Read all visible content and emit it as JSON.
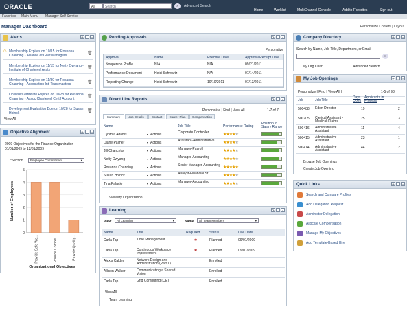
{
  "header": {
    "logo": "ORACLE",
    "search_scope": "All",
    "search_placeholder": "Search",
    "advanced": "Advanced Search",
    "nav": [
      "Home",
      "Worklist",
      "MultiChannel Console",
      "Add to Favorites",
      "Sign out"
    ]
  },
  "menu": {
    "favorites": "Favorites",
    "main": "Main Menu",
    "crumb": "Manager Self Service"
  },
  "page": {
    "title": "Manager Dashboard",
    "personalize": "Personalize Content | Layout"
  },
  "alerts": {
    "title": "Alerts",
    "items": [
      "Membership Expires on 10/15 for Rosanna Channing - Alliance of Govt Managers",
      "Membership Expires on 11/15 for Nelty Owyang - Institute of Chartered Accts",
      "Membership Expires on 11/30 for Rosanna Channing - Association Intl Toastmasters",
      "License/Certificate Expires on 10/28 for Rosanna Channing - Assoc Chartered Certif Account",
      "Development Evaluation Due on 10/28 for Susan Hoinck"
    ],
    "view_all": "View All"
  },
  "objective": {
    "title": "Objective Alignment",
    "subtitle": "2009 Objectives for the Finance Organization",
    "dates": "01/01/2009 to 12/31/2009",
    "section_label": "*Section",
    "section_value": "Employee Commitment"
  },
  "chart_data": {
    "type": "bar",
    "categories": [
      "Provide Safe Wo...",
      "Provide Compet...",
      "Provide Quality..."
    ],
    "values": [
      4,
      4,
      1
    ],
    "ylabel": "Number of Employees",
    "xlabel": "Organizational Objectives",
    "ylim": [
      0,
      5
    ],
    "yticks": [
      0,
      1,
      2,
      3,
      4,
      5
    ]
  },
  "approvals": {
    "title": "Pending Approvals",
    "personalize": "Personalize",
    "headers": [
      "Approval",
      "Name",
      "Effective Date",
      "Approval Receipt Date"
    ],
    "rows": [
      [
        "Nonperson Profile",
        "N/A",
        "N/A",
        "09/21/2011"
      ],
      [
        "Performance Document",
        "Heidi Schwartz",
        "N/A",
        "07/14/2011"
      ],
      [
        "Reporting Change",
        "Heidi Schwartz",
        "10/10/2011",
        "07/13/2011"
      ]
    ]
  },
  "direct": {
    "title": "Direct Line Reports",
    "personalize": "Personalize | Find | View All |",
    "pager": "1-7 of 7",
    "tabs": [
      "Summary",
      "Job Details",
      "Contact",
      "Career Plan",
      "Compensation"
    ],
    "headers": [
      "Name",
      "",
      "Job Title",
      "Performance Rating",
      "Position in Salary Range"
    ],
    "rows": [
      {
        "name": "Cynthia Adams",
        "action": "Actions",
        "job": "Corporate Controller",
        "stars": 4,
        "pos": 0.85
      },
      {
        "name": "Diane Palmer",
        "action": "Actions",
        "job": "Assistant-Administrative",
        "stars": 4,
        "pos": 0.8
      },
      {
        "name": "Jill Chancelor",
        "action": "Actions",
        "job": "Manager-Payroll",
        "stars": 4,
        "pos": 0.9
      },
      {
        "name": "Nelty Owyang",
        "action": "Actions",
        "job": "Manager-Accounting",
        "stars": 4,
        "pos": 0.85
      },
      {
        "name": "Rosanna Channing",
        "action": "Actions",
        "job": "Senior Manager-Accounting",
        "stars": 5,
        "pos": 0.75
      },
      {
        "name": "Susan Hoinck",
        "action": "Actions",
        "job": "Analyst-Financial Sr",
        "stars": 4,
        "pos": 0.75
      },
      {
        "name": "Tina Palacio",
        "action": "Actions",
        "job": "Manager-Accounting",
        "stars": 4,
        "pos": 0.85
      }
    ],
    "footer": "View My Organization"
  },
  "learning": {
    "title": "Learning",
    "view_label": "View",
    "view_value": "All Learning",
    "name_label": "Name",
    "name_value": "All Team Members",
    "headers": [
      "Name",
      "Title",
      "Required",
      "Status",
      "Due Date"
    ],
    "rows": [
      [
        "Carla Tap",
        "Time Management",
        "",
        "Planned",
        "09/01/2009"
      ],
      [
        "Carla Tap",
        "Continuous Workplace Improvement",
        "",
        "Planned",
        "09/01/2009"
      ],
      [
        "Alexis Calder",
        "Network Design and Administration (Part 1)",
        "",
        "Enrolled",
        ""
      ],
      [
        "Allison Walker",
        "Communicating a Shared Vision",
        "",
        "Enrolled",
        ""
      ],
      [
        "Carla Tap",
        "Grid Computing (OE)",
        "",
        "Enrolled",
        ""
      ]
    ],
    "view_all": "View All",
    "team": "Team Learning"
  },
  "directory": {
    "title": "Company Directory",
    "label": "Search by Name, Job Title, Department, or Email",
    "org": "My Org Chart",
    "adv": "Advanced Search"
  },
  "openings": {
    "title": "My Job Openings",
    "personalize": "Personalize | Find | View All |",
    "pager": "1-5 of 98",
    "headers": [
      "Job",
      "Job Title",
      "Days Open",
      "Applicants in Process"
    ],
    "rows": [
      [
        "500488",
        "Eden Director",
        "19",
        "2"
      ],
      [
        "500705",
        "Clerical Assistant - Medical Claims",
        "25",
        "3"
      ],
      [
        "500416",
        "Administrative Assistant",
        "11",
        "4"
      ],
      [
        "500415",
        "Administrative Assistant",
        "23",
        "1"
      ],
      [
        "500414",
        "Administrative Assistant",
        "44",
        "2"
      ]
    ],
    "browse": "Browse Job Openings",
    "create": "Create Job Opening"
  },
  "quick": {
    "title": "Quick Links",
    "items": [
      "Search and Compare Profiles",
      "Add Delegation Request",
      "Administer Delegation",
      "Allocate Compensation",
      "Manage My Objectives",
      "Add Template-Based Hire"
    ]
  }
}
